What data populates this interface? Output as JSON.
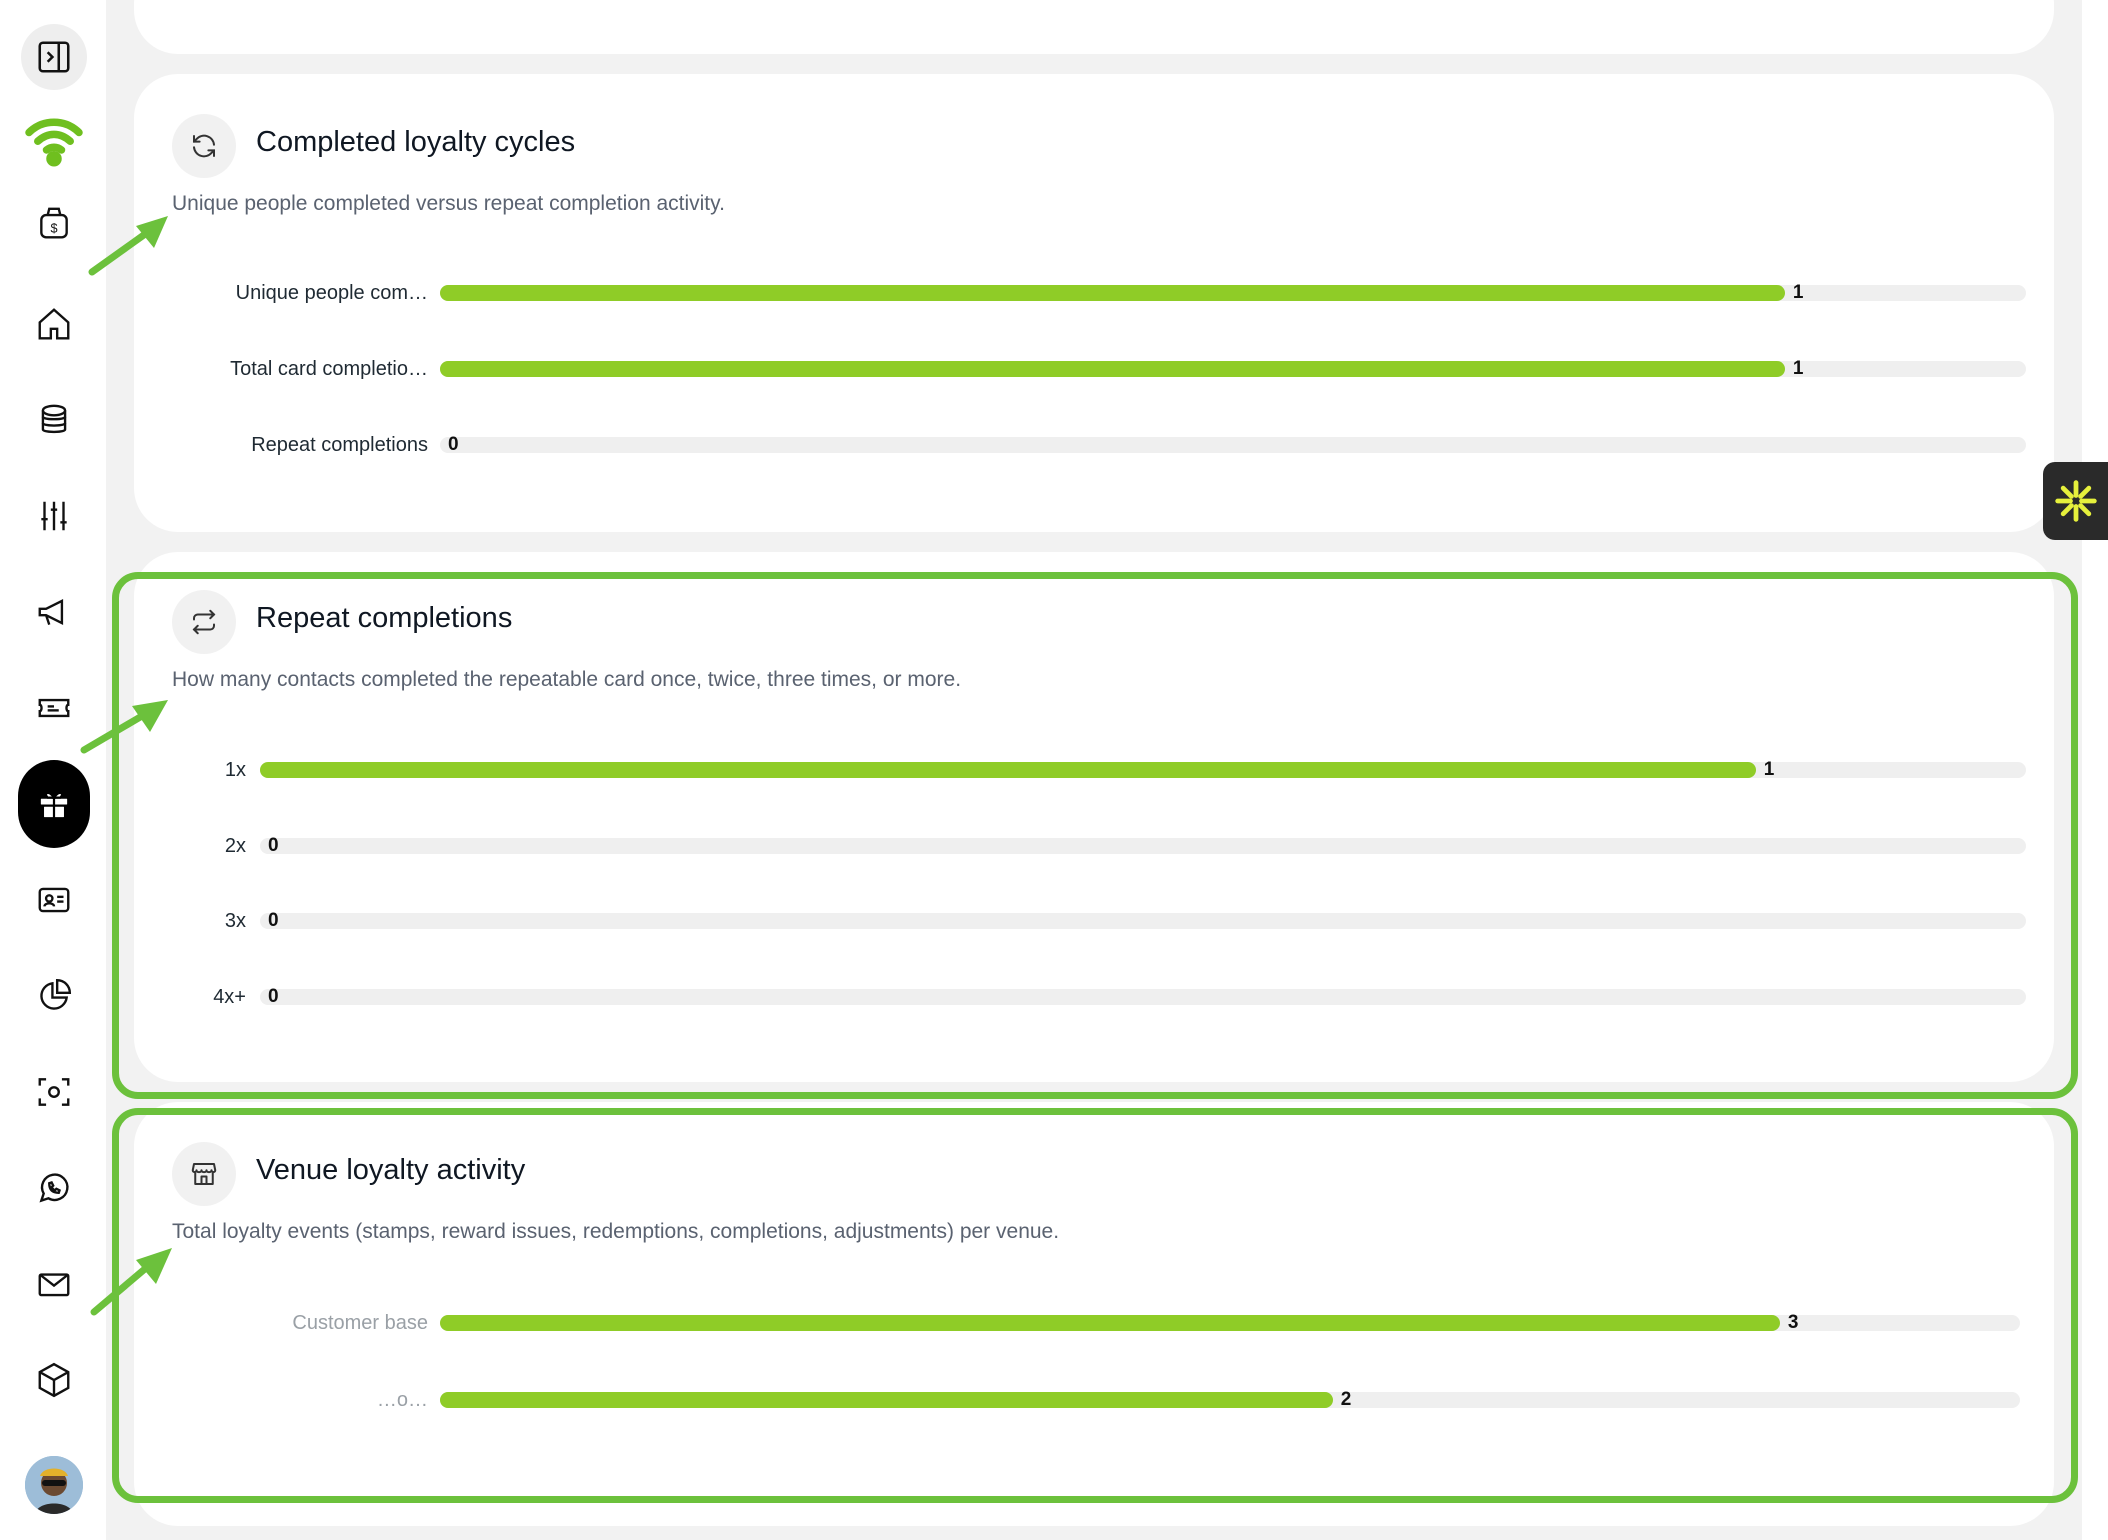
{
  "sidebar": {
    "items": [
      {
        "name": "sidebar-toggle-icon"
      },
      {
        "name": "wifi-logo-icon"
      },
      {
        "name": "money-bag-icon"
      },
      {
        "name": "home-icon"
      },
      {
        "name": "database-icon"
      },
      {
        "name": "sliders-icon"
      },
      {
        "name": "megaphone-icon"
      },
      {
        "name": "ticket-icon"
      },
      {
        "name": "gift-icon"
      },
      {
        "name": "contact-card-icon"
      },
      {
        "name": "pie-chart-icon"
      },
      {
        "name": "scan-icon"
      },
      {
        "name": "whatsapp-icon"
      },
      {
        "name": "mail-icon"
      },
      {
        "name": "cube-icon"
      }
    ],
    "accent_color": "#8fcc27"
  },
  "cards": {
    "completed": {
      "title": "Completed loyalty cycles",
      "description": "Unique people completed versus repeat completion activity.",
      "icon": "refresh-icon",
      "rows": [
        {
          "label": "Unique people com…",
          "value": "1",
          "fraction": 0.848
        },
        {
          "label": "Total card completio…",
          "value": "1",
          "fraction": 0.848
        },
        {
          "label": "Repeat completions",
          "value": "0",
          "fraction": 0
        }
      ]
    },
    "repeat": {
      "title": "Repeat completions",
      "description": "How many contacts completed the repeatable card once, twice, three times, or more.",
      "icon": "repeat-arrows-icon",
      "rows": [
        {
          "label": "1x",
          "value": "1",
          "fraction": 0.847
        },
        {
          "label": "2x",
          "value": "0",
          "fraction": 0
        },
        {
          "label": "3x",
          "value": "0",
          "fraction": 0
        },
        {
          "label": "4x+",
          "value": "0",
          "fraction": 0
        }
      ]
    },
    "venue": {
      "title": "Venue loyalty activity",
      "description": "Total loyalty events (stamps, reward issues, redemptions, completions, adjustments) per venue.",
      "icon": "store-icon",
      "rows": [
        {
          "label": "Customer base",
          "value": "3",
          "fraction": 0.848
        },
        {
          "label": "…o…",
          "value": "2",
          "fraction": 0.565
        }
      ]
    }
  },
  "colors": {
    "bar_fill": "#8fcc27",
    "highlight": "#6cc13c",
    "floating_icon": "#e6f03c"
  }
}
